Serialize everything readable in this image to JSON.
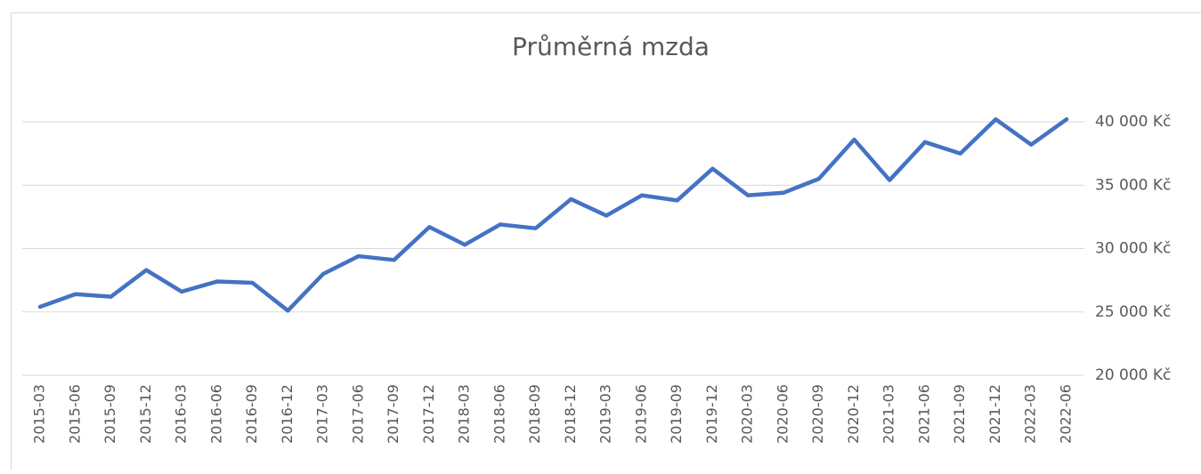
{
  "chart_data": {
    "type": "line",
    "title": "Průměrná mzda",
    "categories": [
      "2015-03",
      "2015-06",
      "2015-09",
      "2015-12",
      "2016-03",
      "2016-06",
      "2016-09",
      "2016-12",
      "2017-03",
      "2017-06",
      "2017-09",
      "2017-12",
      "2018-03",
      "2018-06",
      "2018-09",
      "2018-12",
      "2019-03",
      "2019-06",
      "2019-09",
      "2019-12",
      "2020-03",
      "2020-06",
      "2020-09",
      "2020-12",
      "2021-03",
      "2021-06",
      "2021-09",
      "2021-12",
      "2022-03",
      "2022-06"
    ],
    "series": [
      {
        "name": "Průměrná mzda",
        "color": "#4472c4",
        "values": [
          25400,
          26400,
          26200,
          28300,
          26600,
          27400,
          27300,
          25100,
          28000,
          29400,
          29100,
          31700,
          30300,
          31900,
          31600,
          33900,
          32600,
          34200,
          33800,
          36300,
          34200,
          34400,
          35500,
          38600,
          35400,
          38400,
          37500,
          40200,
          38200,
          40200
        ]
      }
    ],
    "ylim": [
      20000,
      40000
    ],
    "yticks": [
      {
        "value": 20000,
        "label": "20 000 Kč"
      },
      {
        "value": 25000,
        "label": "25 000 Kč"
      },
      {
        "value": 30000,
        "label": "30 000 Kč"
      },
      {
        "value": 35000,
        "label": "35 000 Kč"
      },
      {
        "value": 40000,
        "label": "40 000 Kč"
      }
    ],
    "grid": true
  }
}
